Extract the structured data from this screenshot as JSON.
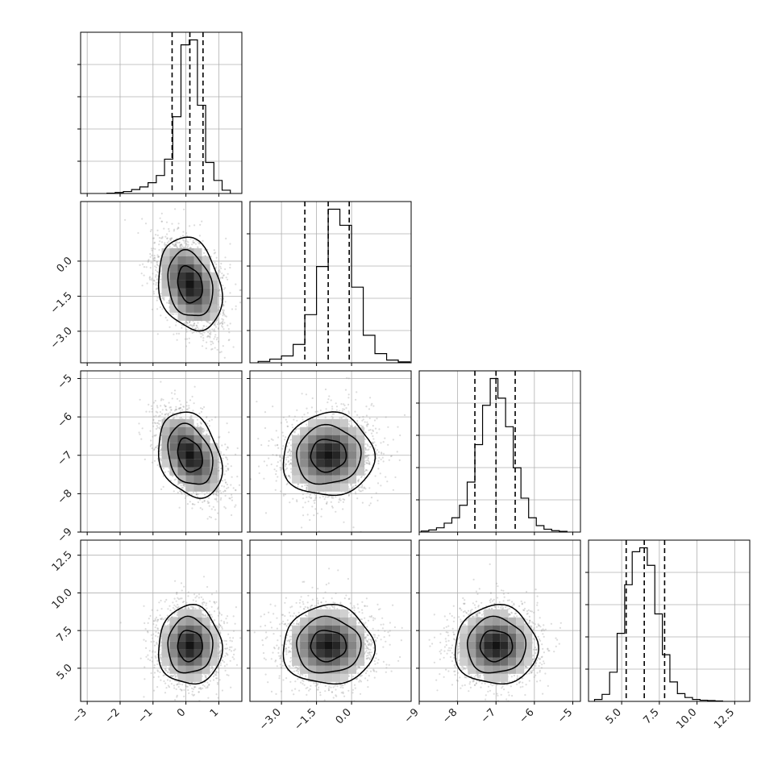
{
  "chart_data": {
    "type": "corner",
    "parameters": [
      {
        "xlim": [
          -3.2,
          1.7
        ],
        "xticks": [
          -3,
          -2,
          -1,
          0,
          1
        ],
        "xtick_labels": [
          "−3",
          "−2",
          "−1",
          "0",
          "1"
        ],
        "yticks": null,
        "ytick_labels": null
      },
      {
        "xlim": [
          -4.35,
          2.55
        ],
        "xticks": [
          -3.0,
          -1.5,
          0.0
        ],
        "xtick_labels": [
          "−3.0",
          "−1.5",
          "0.0"
        ],
        "yticks": [
          0.0,
          -1.5,
          -3.0
        ],
        "ytick_labels": [
          "0.0",
          "−1.5",
          "−3.0"
        ]
      },
      {
        "xlim": [
          -9.0,
          -4.8
        ],
        "xticks": [
          -9,
          -8,
          -7,
          -6,
          -5
        ],
        "xtick_labels": [
          "−9",
          "−8",
          "−7",
          "−6",
          "−5"
        ],
        "yticks": [
          -5,
          -6,
          -7,
          -8,
          -9
        ],
        "ytick_labels": [
          "−5",
          "−6",
          "−7",
          "−8",
          "−9"
        ]
      },
      {
        "xlim": [
          2.8,
          13.5
        ],
        "xticks": [
          5.0,
          7.5,
          10.0,
          12.5
        ],
        "xtick_labels": [
          "5.0",
          "7.5",
          "10.0",
          "12.5"
        ],
        "yticks": [
          12.5,
          10.0,
          7.5,
          5.0
        ],
        "ytick_labels": [
          "12.5",
          "10.0",
          "7.5",
          "5.0"
        ]
      }
    ],
    "marginals": [
      {
        "bins": [
          -2.4,
          -2.15,
          -1.9,
          -1.65,
          -1.4,
          -1.15,
          -0.9,
          -0.65,
          -0.4,
          -0.15,
          0.1,
          0.35,
          0.6,
          0.85,
          1.1,
          1.35
        ],
        "counts": [
          1,
          3,
          6,
          12,
          20,
          33,
          55,
          105,
          235,
          455,
          470,
          270,
          95,
          40,
          10
        ],
        "quantiles": [
          -0.42,
          0.12,
          0.52
        ]
      },
      {
        "bins": [
          -4.0,
          -3.5,
          -3.0,
          -2.5,
          -2.0,
          -1.5,
          -1.0,
          -0.5,
          0.0,
          0.5,
          1.0,
          1.5,
          2.0,
          2.5
        ],
        "counts": [
          3,
          8,
          15,
          40,
          105,
          210,
          335,
          300,
          165,
          60,
          20,
          6,
          2
        ],
        "quantiles": [
          -2.0,
          -1.0,
          -0.1
        ]
      },
      {
        "bins": [
          -8.95,
          -8.75,
          -8.55,
          -8.35,
          -8.15,
          -7.95,
          -7.75,
          -7.55,
          -7.35,
          -7.15,
          -6.95,
          -6.75,
          -6.55,
          -6.35,
          -6.15,
          -5.95,
          -5.75,
          -5.55,
          -5.35,
          -5.15
        ],
        "counts": [
          3,
          6,
          12,
          25,
          40,
          75,
          140,
          245,
          355,
          430,
          375,
          295,
          180,
          95,
          40,
          18,
          8,
          4,
          2
        ],
        "quantiles": [
          -7.55,
          -7.0,
          -6.5
        ]
      },
      {
        "bins": [
          3.2,
          3.7,
          4.2,
          4.7,
          5.2,
          5.7,
          6.2,
          6.7,
          7.2,
          7.7,
          8.2,
          8.7,
          9.2,
          9.7,
          10.2,
          10.7,
          11.2,
          11.7
        ],
        "counts": [
          5,
          18,
          75,
          175,
          300,
          385,
          395,
          350,
          225,
          120,
          50,
          20,
          10,
          5,
          3,
          2,
          1
        ],
        "quantiles": [
          5.3,
          6.5,
          7.85
        ]
      }
    ],
    "samples_per_panel": 2200,
    "contour_levels": 3,
    "quantile_line_style": "dashed",
    "grid": true
  }
}
